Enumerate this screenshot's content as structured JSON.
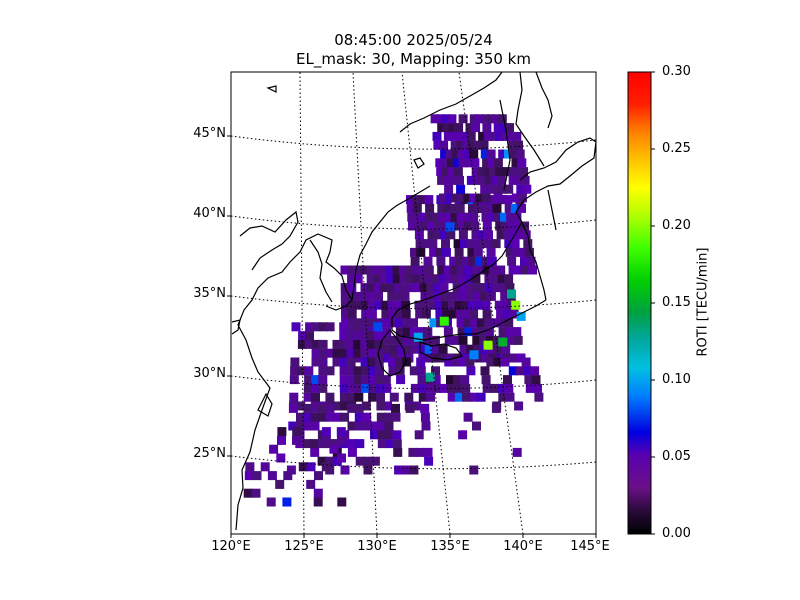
{
  "title": {
    "line1": "08:45:00 2025/05/24",
    "line2": "EL_mask: 30, Mapping: 350 km"
  },
  "chart_data": {
    "type": "heatmap",
    "title": "08:45:00 2025/05/24 EL_mask: 30, Mapping: 350 km",
    "xlabel": "",
    "ylabel": "",
    "xlim": [
      120,
      145
    ],
    "ylim": [
      20,
      49
    ],
    "lat_ticks": [
      "25°N",
      "30°N",
      "35°N",
      "40°N",
      "45°N"
    ],
    "lon_ticks": [
      "120°E",
      "125°E",
      "130°E",
      "135°E",
      "140°E",
      "145°E"
    ],
    "grid": "dotted graticule",
    "colorbar": {
      "label": "ROTI [TECU/min]",
      "range": [
        0.0,
        0.3
      ],
      "ticks": [
        "0.00",
        "0.05",
        "0.10",
        "0.15",
        "0.20",
        "0.25",
        "0.30"
      ],
      "colormap": "nipy_spectral"
    },
    "values_summary": "Most grid cells 0.02–0.05 TECU/min over Japan and surrounding seas; isolated cells 0.06–0.12; maxima ≈0.17–0.22 near 136°E 33°N, 139°E 32°N and 141°E 35°N",
    "hotspots": [
      {
        "lon": 136.0,
        "lat": 33.3,
        "value": 0.18
      },
      {
        "lon": 142.0,
        "lat": 34.3,
        "value": 0.2
      },
      {
        "lon": 139.3,
        "lat": 31.8,
        "value": 0.2
      },
      {
        "lon": 141.8,
        "lat": 35.0,
        "value": 0.13
      },
      {
        "lon": 140.5,
        "lat": 32.0,
        "value": 0.15
      },
      {
        "lon": 134.5,
        "lat": 29.8,
        "value": 0.13
      },
      {
        "lon": 142.3,
        "lat": 33.6,
        "value": 0.1
      },
      {
        "lon": 137.3,
        "lat": 39.2,
        "value": 0.08
      },
      {
        "lon": 138.1,
        "lat": 31.2,
        "value": 0.09
      },
      {
        "lon": 133.8,
        "lat": 32.3,
        "value": 0.1
      }
    ]
  },
  "colors": {
    "coastline": "#000000",
    "background": "#ffffff",
    "dominant_cell": "#3a0a6b",
    "dark_cell": "#25073f"
  }
}
